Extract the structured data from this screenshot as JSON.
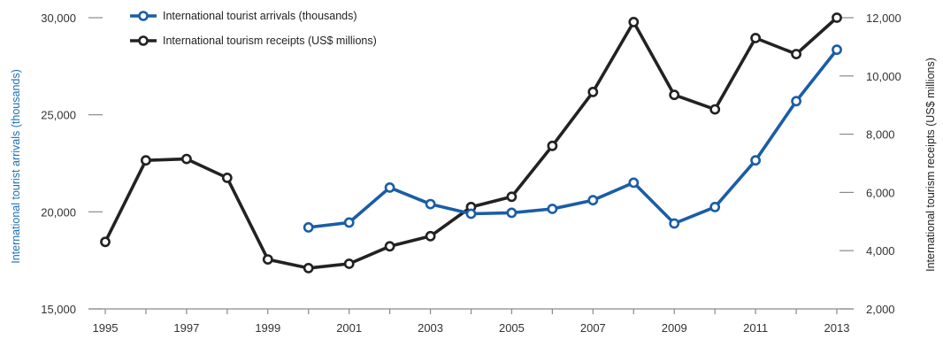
{
  "colors": {
    "arrivals": "#1a5da6",
    "receipts": "#222222",
    "axis": "#8a8a8a",
    "left_title": "#1b6fb5"
  },
  "chart_data": {
    "type": "line",
    "title": "",
    "xlabel": "",
    "ylabel_left": "International tourist arrivals (thousands)",
    "ylabel_right": "International tourism receipts (US$ millions)",
    "xlim": [
      1995,
      2013
    ],
    "ylim_left": [
      15000,
      30000
    ],
    "ylim_right": [
      2000,
      12000
    ],
    "x_tick_labels": [
      "1995",
      "1997",
      "1999",
      "2001",
      "2003",
      "2005",
      "2007",
      "2009",
      "2011",
      "2013"
    ],
    "x_ticks": [
      1995,
      1996,
      1997,
      1998,
      1999,
      2000,
      2001,
      2002,
      2003,
      2004,
      2005,
      2006,
      2007,
      2008,
      2009,
      2010,
      2011,
      2012,
      2013
    ],
    "y_left_ticks": [
      15000,
      20000,
      25000,
      30000
    ],
    "y_left_tick_labels": [
      "15,000",
      "20,000",
      "25,000",
      "30,000"
    ],
    "y_right_ticks": [
      2000,
      4000,
      6000,
      8000,
      10000,
      12000
    ],
    "y_right_tick_labels": [
      "2,000",
      "4,000",
      "6,000",
      "8,000",
      "10,000",
      "12,000"
    ],
    "grid": false,
    "legend_position": "top-left",
    "series": [
      {
        "name": "International tourist arrivals (thousands)",
        "axis": "left",
        "color_key": "arrivals",
        "x": [
          2000,
          2001,
          2002,
          2003,
          2004,
          2005,
          2006,
          2007,
          2008,
          2009,
          2010,
          2011,
          2012,
          2013
        ],
        "values": [
          19200,
          19450,
          21250,
          20400,
          19900,
          19950,
          20150,
          20600,
          21500,
          19400,
          20250,
          22650,
          25700,
          28350
        ]
      },
      {
        "name": "International tourism receipts (US$ millions)",
        "axis": "right",
        "color_key": "receipts",
        "x": [
          1995,
          1996,
          1997,
          1998,
          1999,
          2000,
          2001,
          2002,
          2003,
          2004,
          2005,
          2006,
          2007,
          2008,
          2009,
          2010,
          2011,
          2012,
          2013
        ],
        "values": [
          4300,
          7100,
          7150,
          6500,
          3700,
          3400,
          3550,
          4150,
          4500,
          5500,
          5850,
          7600,
          9450,
          11850,
          9350,
          8850,
          11300,
          10750,
          12000
        ]
      }
    ]
  }
}
